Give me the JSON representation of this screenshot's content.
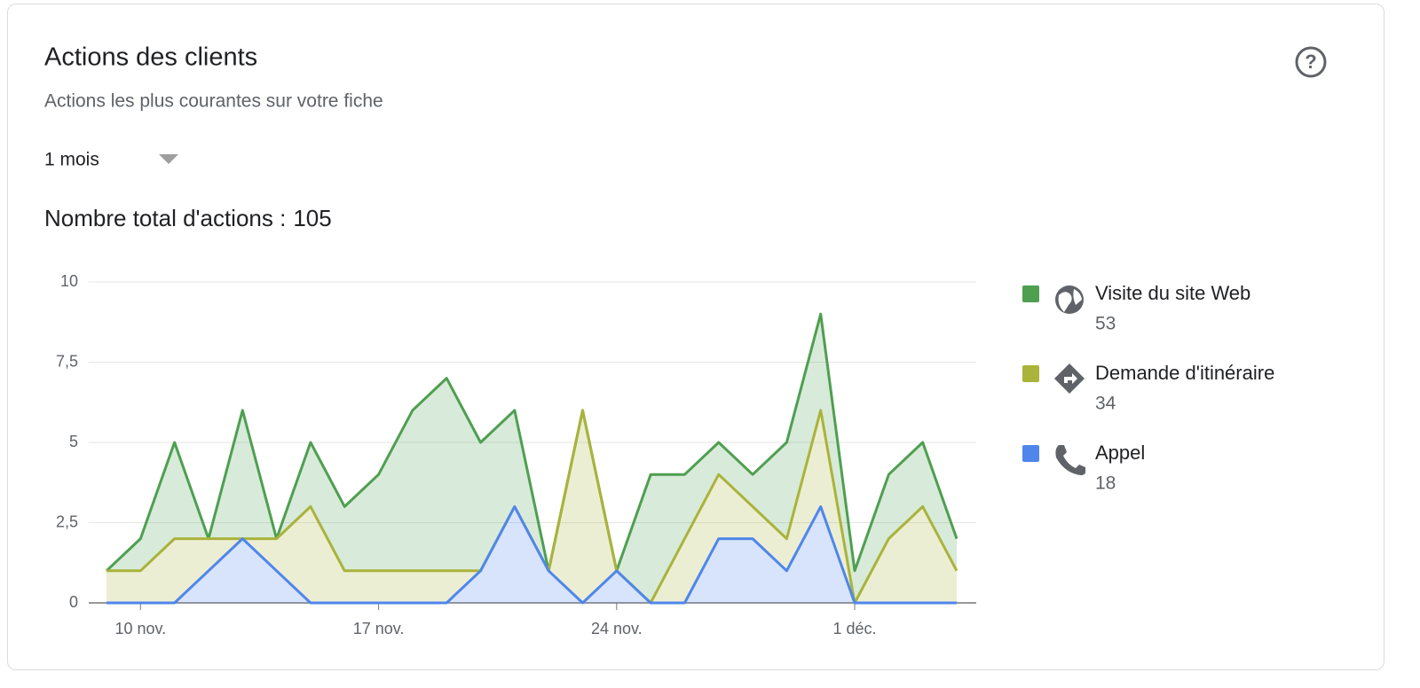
{
  "header": {
    "title": "Actions des clients",
    "subtitle": "Actions les plus courantes sur votre fiche",
    "period": "1 mois",
    "total_label": "Nombre total d'actions :",
    "total": 105
  },
  "chart_data": {
    "type": "stacked-area",
    "categories": [
      null,
      "10 nov.",
      null,
      null,
      null,
      null,
      null,
      null,
      "17 nov.",
      null,
      null,
      null,
      null,
      null,
      null,
      "24 nov.",
      null,
      null,
      null,
      null,
      null,
      null,
      "1 déc.",
      null,
      null,
      null
    ],
    "series": [
      {
        "name": "Visite du site Web",
        "total": 53,
        "color": "#4e9f50",
        "values": [
          0,
          1,
          3,
          0,
          4,
          0,
          2,
          2,
          3,
          5,
          6,
          4,
          3,
          0,
          0,
          0,
          4,
          2,
          1,
          1,
          3,
          3,
          1,
          2,
          2,
          1
        ]
      },
      {
        "name": "Demande d'itinéraire",
        "total": 34,
        "color": "#aab33a",
        "values": [
          1,
          1,
          2,
          1,
          0,
          1,
          3,
          1,
          1,
          1,
          1,
          0,
          0,
          0,
          6,
          0,
          0,
          2,
          2,
          1,
          1,
          3,
          0,
          2,
          3,
          1
        ]
      },
      {
        "name": "Appel",
        "total": 18,
        "color": "#4f86ec",
        "values": [
          0,
          0,
          0,
          1,
          2,
          1,
          0,
          0,
          0,
          0,
          0,
          1,
          3,
          1,
          0,
          1,
          0,
          0,
          2,
          2,
          1,
          3,
          0,
          0,
          0,
          0
        ]
      }
    ],
    "ylim": [
      0,
      10
    ],
    "yticks": [
      0,
      {
        "value": 2.5,
        "label": "2,5"
      },
      5,
      {
        "value": 7.5,
        "label": "7,5"
      },
      10
    ],
    "grid": true,
    "legend": "right"
  }
}
